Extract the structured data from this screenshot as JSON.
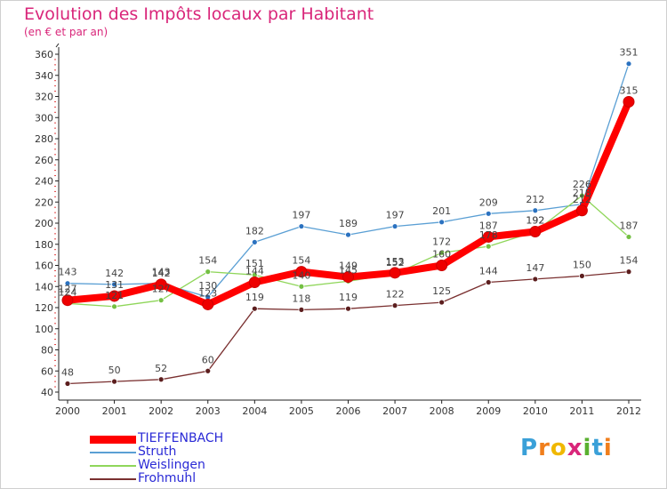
{
  "title": "Evolution des Impôts locaux par Habitant",
  "subtitle": "(en € et par an)",
  "brand": {
    "letters": [
      "P",
      "r",
      "o",
      "x",
      "i",
      "t",
      "i"
    ],
    "colors": [
      "#3aa0d8",
      "#f07e1c",
      "#f0b800",
      "#d9267a",
      "#5ab030",
      "#3aa0d8",
      "#f07e1c"
    ]
  },
  "chart_data": {
    "type": "line",
    "title": "Evolution des Impôts locaux par Habitant",
    "subtitle": "(en € et par an)",
    "xlabel": "",
    "ylabel": "",
    "ylim": [
      40,
      360
    ],
    "yticks": [
      40,
      60,
      80,
      100,
      120,
      140,
      160,
      180,
      200,
      220,
      240,
      260,
      280,
      300,
      320,
      340,
      360
    ],
    "categories": [
      "2000",
      "2001",
      "2002",
      "2003",
      "2004",
      "2005",
      "2006",
      "2007",
      "2008",
      "2009",
      "2010",
      "2011",
      "2012"
    ],
    "grid": false,
    "legend": "bottom-left",
    "series": [
      {
        "name": "Struth",
        "color": "#5a9fd4",
        "marker": "#2b72c0",
        "width": 1.3,
        "values": [
          143,
          142,
          143,
          130,
          182,
          197,
          189,
          197,
          201,
          209,
          212,
          218,
          351
        ],
        "labels": [
          "143",
          "142",
          "143",
          "130",
          "182",
          "197",
          "189",
          "197",
          "201",
          "209",
          "212",
          "218",
          "351"
        ]
      },
      {
        "name": "Weislingen",
        "color": "#8fd65a",
        "marker": "#74c043",
        "width": 1.3,
        "values": [
          124,
          121,
          127,
          154,
          151,
          140,
          145,
          152,
          172,
          178,
          192,
          226,
          187
        ],
        "labels": [
          "124",
          "121",
          "127",
          "154",
          "151",
          "140",
          "145",
          "152",
          "172",
          "178",
          "192",
          "226",
          "187"
        ]
      },
      {
        "name": "Frohmuhl",
        "color": "#7a3030",
        "marker": "#5c1e1e",
        "width": 1.3,
        "values": [
          48,
          50,
          52,
          60,
          119,
          118,
          119,
          122,
          125,
          144,
          147,
          150,
          154
        ],
        "labels": [
          "48",
          "50",
          "52",
          "60",
          "119",
          "118",
          "119",
          "122",
          "125",
          "144",
          "147",
          "150",
          "154"
        ]
      },
      {
        "name": "TIEFFENBACH",
        "color": "#ff0000",
        "marker": "#ee0000",
        "width": 8,
        "values": [
          127,
          131,
          142,
          123,
          144,
          154,
          149,
          153,
          160,
          187,
          192,
          212,
          315
        ],
        "labels": [
          "127",
          "131",
          "142",
          "123",
          "144",
          "154",
          "149",
          "153",
          "160",
          "187",
          "192",
          "212",
          "315"
        ]
      }
    ],
    "legend_order": [
      "TIEFFENBACH",
      "Struth",
      "Weislingen",
      "Frohmuhl"
    ]
  }
}
